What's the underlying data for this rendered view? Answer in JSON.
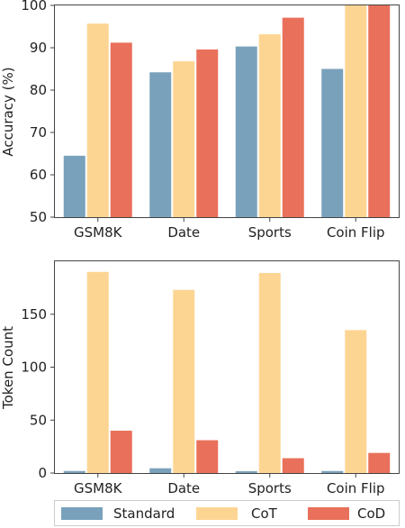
{
  "colors": {
    "standard": "#7aa1bb",
    "cot": "#fdd593",
    "cod": "#e9705a"
  },
  "legend": {
    "entries": [
      {
        "name": "Standard",
        "color": "#7aa1bb"
      },
      {
        "name": "CoT",
        "color": "#fdd593"
      },
      {
        "name": "CoD",
        "color": "#e9705a"
      }
    ],
    "placement": "bottom"
  },
  "chart_data": [
    {
      "type": "bar",
      "categories": [
        "GSM8K",
        "Date",
        "Sports",
        "Coin Flip"
      ],
      "series": [
        {
          "name": "Standard",
          "values": [
            64.5,
            84.2,
            90.3,
            85.0
          ]
        },
        {
          "name": "CoT",
          "values": [
            95.7,
            86.8,
            93.2,
            100.0
          ]
        },
        {
          "name": "CoD",
          "values": [
            91.2,
            89.6,
            97.1,
            100.0
          ]
        }
      ],
      "ylabel": "Accuracy (%)",
      "xlabel": "",
      "ylim": [
        50,
        100
      ],
      "yticks": [
        50,
        60,
        70,
        80,
        90,
        100
      ],
      "grid": false
    },
    {
      "type": "bar",
      "categories": [
        "GSM8K",
        "Date",
        "Sports",
        "Coin Flip"
      ],
      "series": [
        {
          "name": "Standard",
          "values": [
            1.9,
            4.5,
            1.7,
            1.9
          ]
        },
        {
          "name": "CoT",
          "values": [
            190,
            173,
            189,
            135
          ]
        },
        {
          "name": "CoD",
          "values": [
            40,
            31,
            14,
            19
          ]
        }
      ],
      "ylabel": "Token Count",
      "xlabel": "",
      "ylim": [
        0,
        200
      ],
      "yticks": [
        0,
        50,
        100,
        150
      ],
      "grid": false
    }
  ]
}
